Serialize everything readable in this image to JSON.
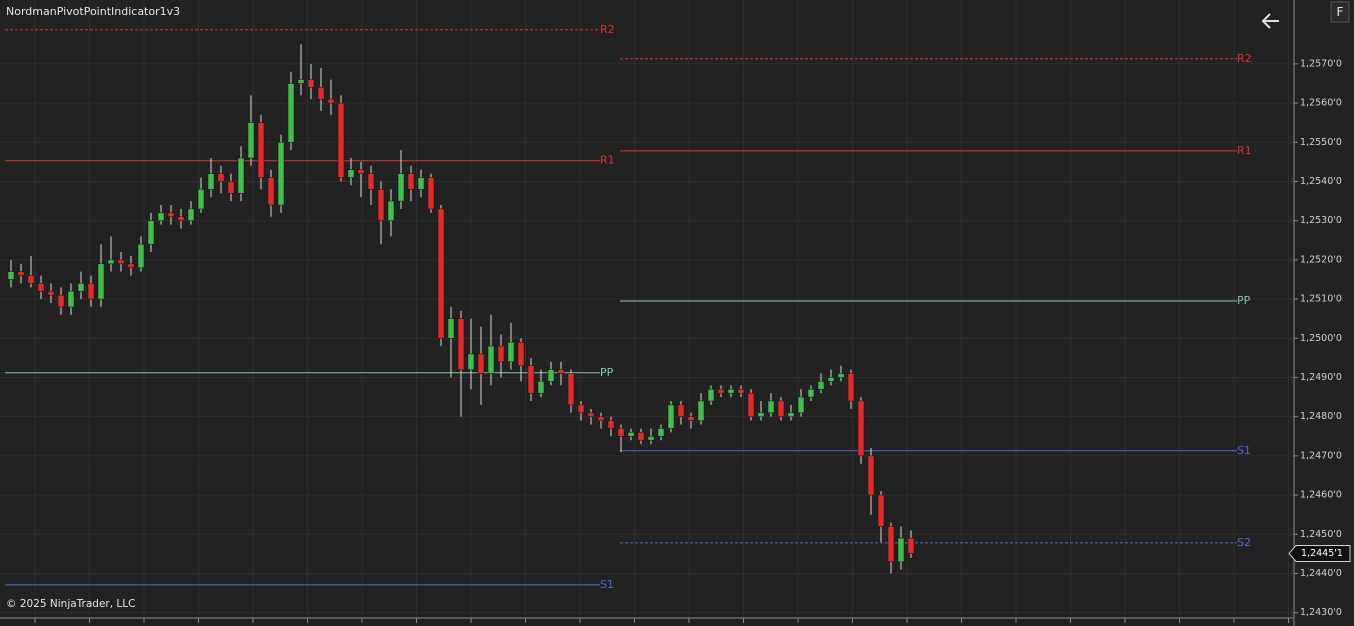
{
  "chart_data": {
    "type": "candlestick",
    "title": "NordmanPivotPointIndicator1v3",
    "copyright": "© 2025 NinjaTrader, LLC",
    "button_label": "F",
    "up_color": "#3fbf4b",
    "down_color": "#e52a2a",
    "wick_color": "#d8d8d8",
    "grid": true,
    "ylim": [
      1.24266,
      1.25863
    ],
    "yticks": [
      {
        "value": 1.243,
        "label": "1,2430'0"
      },
      {
        "value": 1.244,
        "label": "1,2440'0"
      },
      {
        "value": 1.245,
        "label": "1,2450'0"
      },
      {
        "value": 1.246,
        "label": "1,2460'0"
      },
      {
        "value": 1.247,
        "label": "1,2470'0"
      },
      {
        "value": 1.248,
        "label": "1,2480'0"
      },
      {
        "value": 1.249,
        "label": "1,2490'0"
      },
      {
        "value": 1.25,
        "label": "1,2500'0"
      },
      {
        "value": 1.251,
        "label": "1,2510'0"
      },
      {
        "value": 1.252,
        "label": "1,2520'0"
      },
      {
        "value": 1.253,
        "label": "1,2530'0"
      },
      {
        "value": 1.254,
        "label": "1,2540'0"
      },
      {
        "value": 1.255,
        "label": "1,2550'0"
      },
      {
        "value": 1.256,
        "label": "1,2560'0"
      },
      {
        "value": 1.257,
        "label": "1,2570'0"
      }
    ],
    "last_price": {
      "value": 1.24451,
      "label": "1,2445'1"
    },
    "candles": {
      "open": [
        1.2515,
        1.2517,
        1.2516,
        1.2514,
        1.2512,
        1.2511,
        1.2508,
        1.2512,
        1.2514,
        1.251,
        1.2519,
        1.252,
        1.2519,
        1.2518,
        1.2524,
        1.253,
        1.2532,
        1.2531,
        1.253,
        1.2533,
        1.2538,
        1.2542,
        1.254,
        1.2537,
        1.2546,
        1.2555,
        1.2541,
        1.2534,
        1.255,
        1.2565,
        1.2566,
        1.2564,
        1.2561,
        1.256,
        1.2541,
        1.2543,
        1.2542,
        1.2538,
        1.253,
        1.2535,
        1.2542,
        1.2538,
        1.2541,
        1.2533,
        1.25,
        1.2505,
        1.2492,
        1.2496,
        1.2491,
        1.2498,
        1.2494,
        1.2499,
        1.2493,
        1.2486,
        1.2489,
        1.2492,
        1.2491,
        1.2483,
        1.2481,
        1.248,
        1.2479,
        1.2477,
        1.2475,
        1.2476,
        1.2474,
        1.2475,
        1.2477,
        1.2483,
        1.248,
        1.2479,
        1.2484,
        1.2487,
        1.2486,
        1.2487,
        1.2486,
        1.248,
        1.2481,
        1.2484,
        1.248,
        1.2481,
        1.2485,
        1.2487,
        1.2489,
        1.249,
        1.2491,
        1.2484,
        1.247,
        1.246,
        1.2452,
        1.2443,
        1.2449
      ],
      "high": [
        1.252,
        1.2519,
        1.2521,
        1.2516,
        1.2514,
        1.2513,
        1.2514,
        1.2517,
        1.2516,
        1.2524,
        1.2526,
        1.2522,
        1.2521,
        1.2526,
        1.2532,
        1.2534,
        1.2534,
        1.2533,
        1.2535,
        1.2541,
        1.2546,
        1.2544,
        1.2542,
        1.2549,
        1.2562,
        1.2557,
        1.2543,
        1.2552,
        1.2568,
        1.2575,
        1.257,
        1.2569,
        1.2566,
        1.2562,
        1.2546,
        1.2545,
        1.2544,
        1.254,
        1.2538,
        1.2548,
        1.2544,
        1.2543,
        1.2542,
        1.2534,
        1.2508,
        1.2507,
        1.2505,
        1.2503,
        1.2506,
        1.2501,
        1.2504,
        1.25,
        1.2495,
        1.2492,
        1.2494,
        1.2494,
        1.2492,
        1.2484,
        1.2482,
        1.2481,
        1.248,
        1.2478,
        1.2477,
        1.2477,
        1.2477,
        1.2478,
        1.2484,
        1.2484,
        1.2481,
        1.2486,
        1.2488,
        1.2488,
        1.2488,
        1.2488,
        1.2487,
        1.2484,
        1.2486,
        1.2485,
        1.2483,
        1.2487,
        1.2488,
        1.2491,
        1.2492,
        1.2493,
        1.2492,
        1.2485,
        1.2472,
        1.2461,
        1.2453,
        1.2452,
        1.2451
      ],
      "low": [
        1.2513,
        1.2514,
        1.2513,
        1.251,
        1.2509,
        1.2506,
        1.2506,
        1.251,
        1.2508,
        1.2508,
        1.2517,
        1.2517,
        1.2516,
        1.2517,
        1.2522,
        1.2529,
        1.2529,
        1.2528,
        1.2529,
        1.2532,
        1.2536,
        1.2537,
        1.2535,
        1.2535,
        1.2544,
        1.2538,
        1.2531,
        1.2532,
        1.2548,
        1.2562,
        1.2561,
        1.2558,
        1.2557,
        1.254,
        1.2539,
        1.2536,
        1.2534,
        1.2524,
        1.2526,
        1.2533,
        1.2535,
        1.2536,
        1.2532,
        1.2498,
        1.249,
        1.248,
        1.2487,
        1.2483,
        1.2488,
        1.249,
        1.2492,
        1.2489,
        1.2484,
        1.2485,
        1.2488,
        1.2488,
        1.2481,
        1.2479,
        1.2478,
        1.2477,
        1.2475,
        1.2471,
        1.2474,
        1.2473,
        1.2473,
        1.2474,
        1.2476,
        1.2478,
        1.2477,
        1.2478,
        1.2483,
        1.2485,
        1.2485,
        1.2485,
        1.2479,
        1.2479,
        1.248,
        1.2479,
        1.2479,
        1.248,
        1.2484,
        1.2486,
        1.2488,
        1.2489,
        1.2482,
        1.2468,
        1.2455,
        1.2448,
        1.244,
        1.2441,
        1.2444
      ],
      "close": [
        1.2517,
        1.2516,
        1.2514,
        1.2512,
        1.2511,
        1.2508,
        1.2512,
        1.2514,
        1.251,
        1.2519,
        1.252,
        1.2519,
        1.2518,
        1.2524,
        1.253,
        1.2532,
        1.2531,
        1.253,
        1.2533,
        1.2538,
        1.2542,
        1.254,
        1.2537,
        1.2546,
        1.2555,
        1.2541,
        1.2534,
        1.255,
        1.2565,
        1.2566,
        1.2564,
        1.2561,
        1.256,
        1.2541,
        1.2543,
        1.2542,
        1.2538,
        1.253,
        1.2535,
        1.2542,
        1.2538,
        1.2541,
        1.2533,
        1.25,
        1.2505,
        1.2492,
        1.2496,
        1.2491,
        1.2498,
        1.2494,
        1.2499,
        1.2493,
        1.2486,
        1.2489,
        1.2492,
        1.2491,
        1.2483,
        1.2481,
        1.248,
        1.2479,
        1.2477,
        1.2475,
        1.2476,
        1.2474,
        1.2475,
        1.2477,
        1.2483,
        1.248,
        1.2479,
        1.2484,
        1.2487,
        1.2486,
        1.2487,
        1.2486,
        1.248,
        1.2481,
        1.2484,
        1.248,
        1.2481,
        1.2485,
        1.2487,
        1.2489,
        1.249,
        1.2491,
        1.2484,
        1.247,
        1.246,
        1.2452,
        1.2443,
        1.2449,
        1.24451
      ]
    },
    "pivot_sessions": [
      {
        "levels": [
          {
            "name": "R2",
            "value": 1.25787,
            "color": "#e0302f",
            "dashed": true
          },
          {
            "name": "R1",
            "value": 1.25453,
            "color": "#e0302f",
            "dashed": false
          },
          {
            "name": "PP",
            "value": 1.24912,
            "color": "#7ec8a6",
            "dashed": false
          },
          {
            "name": "S1",
            "value": 1.24371,
            "color": "#4a6fd4",
            "dashed": false
          }
        ]
      },
      {
        "levels": [
          {
            "name": "R2",
            "value": 1.25713,
            "color": "#e0302f",
            "dashed": true
          },
          {
            "name": "R1",
            "value": 1.25478,
            "color": "#e0302f",
            "dashed": false
          },
          {
            "name": "PP",
            "value": 1.25095,
            "color": "#7ec8a6",
            "dashed": false
          },
          {
            "name": "S1",
            "value": 1.24713,
            "color": "#4a6fd4",
            "dashed": false
          },
          {
            "name": "S2",
            "value": 1.24478,
            "color": "#4a6fd4",
            "dashed": true
          }
        ]
      }
    ]
  }
}
